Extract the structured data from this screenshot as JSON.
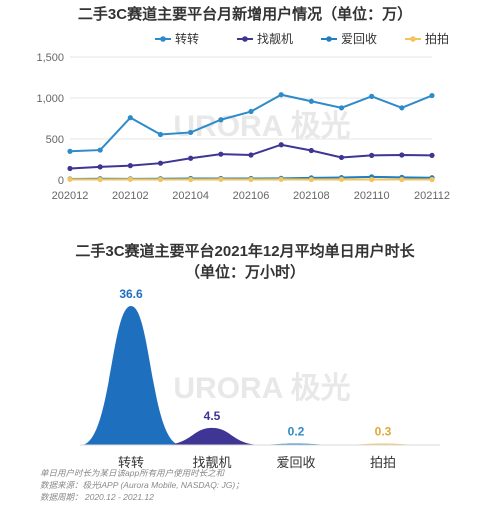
{
  "watermark": "URORA 极光",
  "chart_data": [
    {
      "type": "line",
      "title": "二手3C赛道主要平台月新增用户情况（单位：万）",
      "x": [
        "202012",
        "202101",
        "202102",
        "202103",
        "202104",
        "202105",
        "202106",
        "202107",
        "202108",
        "202109",
        "202110",
        "202111",
        "202112"
      ],
      "x_tick_labels": [
        "202012",
        "202102",
        "202104",
        "202106",
        "202108",
        "202110",
        "202112"
      ],
      "ylim": [
        0,
        1500
      ],
      "yticks": [
        0,
        500,
        1000,
        1500
      ],
      "ytick_labels": [
        "0",
        "500",
        "1,000",
        "1,500"
      ],
      "grid": true,
      "legend_position": "top",
      "series": [
        {
          "name": "转转",
          "color": "#2e8bc9",
          "values": [
            350,
            365,
            760,
            555,
            580,
            735,
            835,
            1040,
            960,
            880,
            1020,
            880,
            1030
          ]
        },
        {
          "name": "找靓机",
          "color": "#3e3594",
          "values": [
            140,
            160,
            175,
            205,
            265,
            315,
            305,
            430,
            360,
            275,
            300,
            305,
            300
          ]
        },
        {
          "name": "爱回收",
          "color": "#1f7fc1",
          "values": [
            12,
            15,
            14,
            16,
            18,
            18,
            18,
            20,
            26,
            30,
            38,
            32,
            28
          ]
        },
        {
          "name": "拍拍",
          "color": "#f5c35a",
          "values": [
            8,
            6,
            8,
            6,
            6,
            8,
            6,
            8,
            6,
            8,
            6,
            6,
            6
          ]
        }
      ]
    },
    {
      "type": "bar",
      "title": "二手3C赛道主要平台2021年12月平均单日用户时长",
      "subtitle": "（单位：万小时）",
      "categories": [
        "转转",
        "找靓机",
        "爱回收",
        "拍拍"
      ],
      "values": [
        36.6,
        4.5,
        0.2,
        0.3
      ],
      "value_labels": [
        "36.6",
        "4.5",
        "0.2",
        "0.3"
      ],
      "colors": [
        "#1f6fbf",
        "#3e3594",
        "#2e8bc9",
        "#f5c35a"
      ]
    }
  ],
  "notes": [
    "单日用户时长为某日该app所有用户使用时长之和",
    "数据来源：极光iAPP (Aurora Mobile, NASDAQ: JG)；",
    "数据周期： 2020.12 - 2021.12"
  ]
}
